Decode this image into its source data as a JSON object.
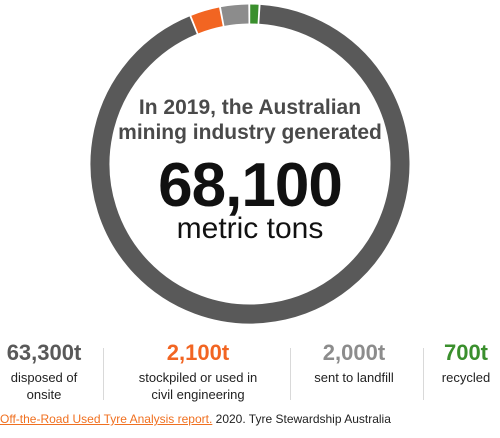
{
  "chart_data": {
    "type": "pie",
    "title": "In 2019, the Australian mining industry generated",
    "total": 68100,
    "total_display": "68,100",
    "unit": "metric tons",
    "slices": [
      {
        "value": 63300,
        "display": "63,300t",
        "label": "disposed of onsite",
        "color": "#595959"
      },
      {
        "value": 2100,
        "display": "2,100t",
        "label": "stockpiled or used in civil engineering",
        "color": "#f26522"
      },
      {
        "value": 2000,
        "display": "2,000t",
        "label": "sent to landfill",
        "color": "#8c8c8c"
      },
      {
        "value": 700,
        "display": "700t",
        "label": "recycled",
        "color": "#3a8f2d"
      }
    ]
  },
  "headline": {
    "line1": "In 2019, the Australian",
    "line2": "mining industry generated",
    "number": "68,100",
    "unit": "metric tons"
  },
  "stats": [
    {
      "value": "63,300t",
      "label_line1": "disposed of",
      "label_line2": "onsite",
      "color": "#595959"
    },
    {
      "value": "2,100t",
      "label_line1": "stockpiled or used in",
      "label_line2": "civil engineering",
      "color": "#f26522"
    },
    {
      "value": "2,000t",
      "label_line1": "sent to landfill",
      "label_line2": "",
      "color": "#8c8c8c"
    },
    {
      "value": "700t",
      "label_line1": "recycled",
      "label_line2": "",
      "color": "#3a8f2d"
    }
  ],
  "source": {
    "link_text": "Off-the-Road Used Tyre Analysis report.",
    "rest_text": " 2020. Tyre Stewardship Australia"
  }
}
